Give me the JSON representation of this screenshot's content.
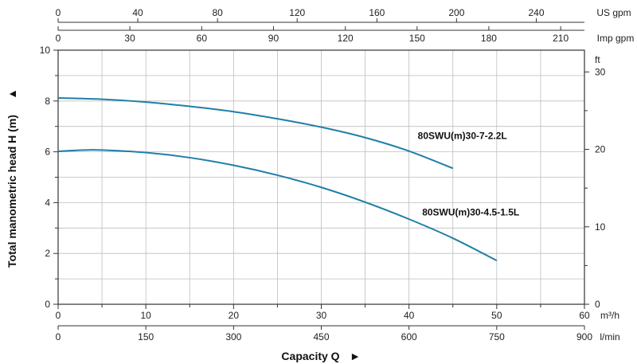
{
  "chart_data": {
    "type": "line",
    "xlabel": "Capacity Q",
    "ylabel": "Total manometric head H (m)",
    "xlim": [
      0,
      60
    ],
    "ylim": [
      0,
      10
    ],
    "grid": true,
    "colors": {
      "series": "#1f7fa8",
      "grid": "#bdbdbd",
      "axis": "#333333"
    },
    "axes": {
      "bottom_primary": {
        "unit": "m³/h",
        "ticks": [
          "0",
          "10",
          "20",
          "30",
          "40",
          "50",
          "60"
        ],
        "values": [
          0,
          10,
          20,
          30,
          40,
          50,
          60
        ]
      },
      "bottom_secondary": {
        "unit": "l/min",
        "ticks": [
          "0",
          "150",
          "300",
          "450",
          "600",
          "750",
          "900"
        ],
        "values": [
          0,
          10,
          20,
          30,
          40,
          50,
          60
        ]
      },
      "top_imp": {
        "unit": "Imp gpm",
        "ticks": [
          "0",
          "30",
          "60",
          "90",
          "120",
          "150",
          "180",
          "210"
        ],
        "values": [
          0,
          8.18,
          16.37,
          24.55,
          32.74,
          40.92,
          49.1,
          57.29
        ]
      },
      "top_us": {
        "unit": "US gpm",
        "ticks": [
          "0",
          "40",
          "80",
          "120",
          "160",
          "200",
          "240"
        ],
        "values": [
          0,
          9.08,
          18.17,
          27.25,
          36.34,
          45.42,
          54.51
        ]
      },
      "left": {
        "unit": "",
        "ticks": [
          "0",
          "2",
          "4",
          "6",
          "8",
          "10"
        ],
        "values": [
          0,
          2,
          4,
          6,
          8,
          10
        ]
      },
      "right": {
        "unit": "ft",
        "ticks": [
          "0",
          "10",
          "20",
          "30"
        ],
        "values": [
          0,
          3.048,
          6.096,
          9.144
        ]
      }
    },
    "series": [
      {
        "name": "80SWU(m)30-7-2.2L",
        "x": [
          0,
          5,
          10,
          15,
          20,
          25,
          30,
          35,
          40,
          45
        ],
        "y": [
          8.12,
          8.07,
          7.96,
          7.79,
          7.58,
          7.3,
          6.97,
          6.56,
          6.03,
          5.35
        ]
      },
      {
        "name": "80SWU(m)30-4.5-1.5L",
        "x": [
          0,
          3,
          5,
          10,
          15,
          20,
          25,
          30,
          35,
          40,
          45,
          50
        ],
        "y": [
          6.02,
          6.07,
          6.07,
          5.97,
          5.77,
          5.47,
          5.08,
          4.6,
          4.02,
          3.35,
          2.6,
          1.72
        ]
      }
    ],
    "series_label_anchor": [
      {
        "x": 41,
        "y": 6.5
      },
      {
        "x": 41.5,
        "y": 3.5
      }
    ]
  }
}
